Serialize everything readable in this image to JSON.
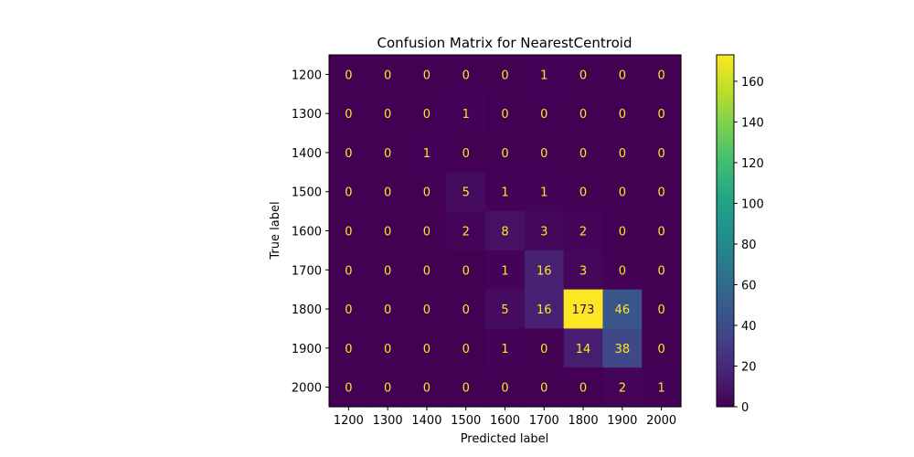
{
  "chart_data": {
    "type": "heatmap",
    "title": "Confusion Matrix for NearestCentroid",
    "xlabel": "Predicted label",
    "ylabel": "True label",
    "x_categories": [
      "1200",
      "1300",
      "1400",
      "1500",
      "1600",
      "1700",
      "1800",
      "1900",
      "2000"
    ],
    "y_categories": [
      "1200",
      "1300",
      "1400",
      "1500",
      "1600",
      "1700",
      "1800",
      "1900",
      "2000"
    ],
    "values": [
      [
        0,
        0,
        0,
        0,
        0,
        1,
        0,
        0,
        0
      ],
      [
        0,
        0,
        0,
        1,
        0,
        0,
        0,
        0,
        0
      ],
      [
        0,
        0,
        1,
        0,
        0,
        0,
        0,
        0,
        0
      ],
      [
        0,
        0,
        0,
        5,
        1,
        1,
        0,
        0,
        0
      ],
      [
        0,
        0,
        0,
        2,
        8,
        3,
        2,
        0,
        0
      ],
      [
        0,
        0,
        0,
        0,
        1,
        16,
        3,
        0,
        0
      ],
      [
        0,
        0,
        0,
        0,
        5,
        16,
        173,
        46,
        0
      ],
      [
        0,
        0,
        0,
        0,
        1,
        0,
        14,
        38,
        0
      ],
      [
        0,
        0,
        0,
        0,
        0,
        0,
        0,
        2,
        1
      ]
    ],
    "colormap": "viridis",
    "colorbar": {
      "vmin": 0,
      "vmax": 173,
      "ticks": [
        0,
        20,
        40,
        60,
        80,
        100,
        120,
        140,
        160
      ]
    },
    "grid": false
  }
}
